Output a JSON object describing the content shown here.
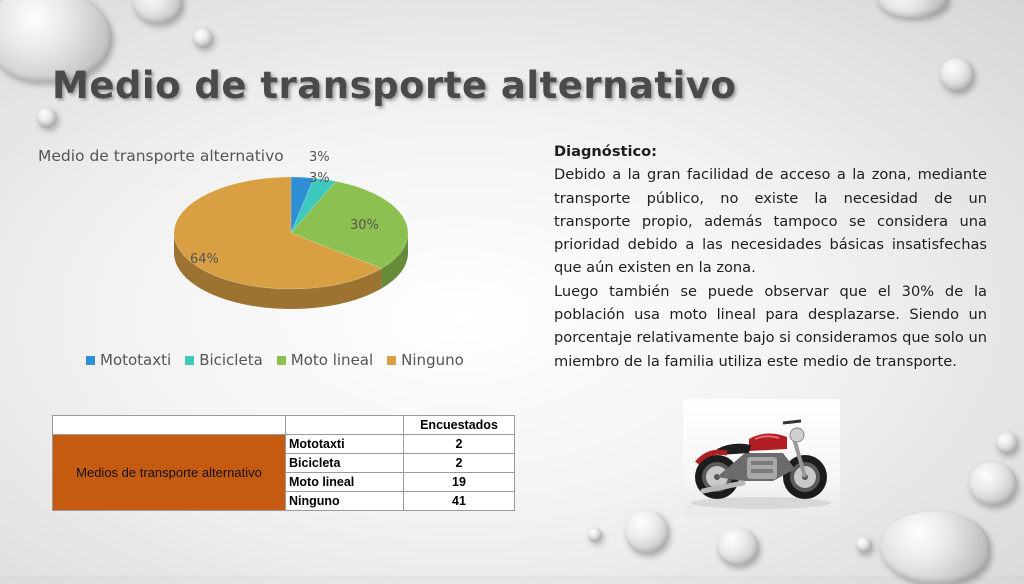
{
  "slide": {
    "title": "Medio de transporte alternativo"
  },
  "chart_data": {
    "type": "pie",
    "title": "Medio de transporte alternativo",
    "categories": [
      "Mototaxti",
      "Bicicleta",
      "Moto lineal",
      "Ninguno"
    ],
    "values": [
      2,
      2,
      19,
      41
    ],
    "percent_labels": [
      "3%",
      "3%",
      "30%",
      "64%"
    ],
    "colors": [
      "#2e8fd6",
      "#3ec9bf",
      "#8cc152",
      "#d9a043"
    ],
    "legend_position": "bottom",
    "style": "3d"
  },
  "diagnosis": {
    "heading": "Diagnóstico:",
    "paragraph1": "Debido a la gran facilidad de acceso a la zona, mediante transporte público, no existe la necesidad de un transporte propio, además tampoco se considera una prioridad debido a las necesidades básicas insatisfechas que aún existen en la zona.",
    "paragraph2": "Luego también se puede observar que el 30% de la población usa moto lineal para desplazarse. Siendo un porcentaje relativamente bajo si consideramos que solo un miembro de la familia utiliza este medio de transporte."
  },
  "table": {
    "header": "Encuestados",
    "group_label": "Medios de transporte alternativo",
    "group_color": "#c55a11",
    "rows": [
      {
        "name": "Mototaxti",
        "value": "2"
      },
      {
        "name": "Bicicleta",
        "value": "2"
      },
      {
        "name": "Moto lineal",
        "value": "19"
      },
      {
        "name": "Ninguno",
        "value": "41"
      }
    ]
  },
  "image": {
    "icon": "motorcycle-photo"
  }
}
